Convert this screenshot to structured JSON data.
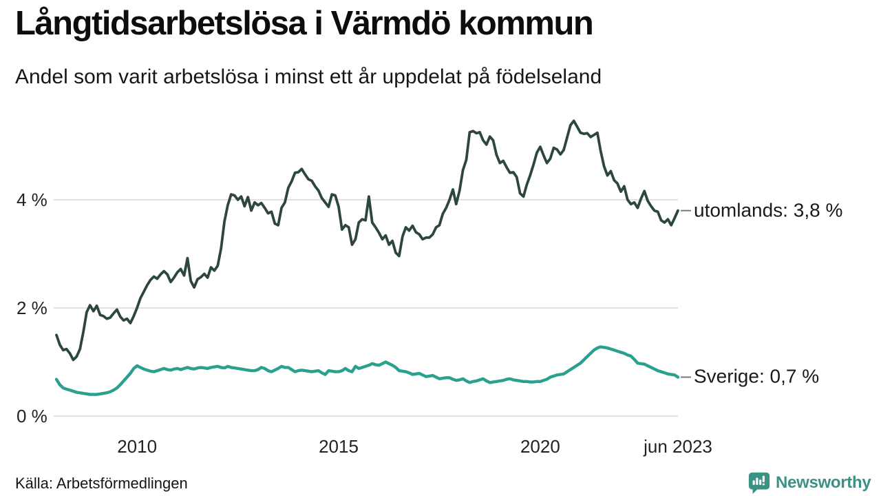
{
  "header": {
    "title": "Långtidsarbetslösa i Värmdö kommun",
    "subtitle": "Andel som varit arbetslösa i minst ett år uppdelat på födelseland"
  },
  "footer": {
    "source": "Källa: Arbetsförmedlingen",
    "brand": "Newsworthy",
    "brand_icon": "bar-chart-speech-bubble-icon"
  },
  "colors": {
    "utomlands_line": "#2d463e",
    "sverige_line": "#2aa08f",
    "grid": "#e2e2e2",
    "connector_dash": "#7a7a7a",
    "brand_teal": "#3a9184",
    "text": "#111111"
  },
  "chart_data": {
    "type": "line",
    "title": "Långtidsarbetslösa i Värmdö kommun",
    "subtitle": "Andel som varit arbetslösa i minst ett år uppdelat på födelseland",
    "unit": "percent",
    "frequency": "monthly",
    "x_start": "2008-01",
    "x_end": "2023-06",
    "x_tick_labels": [
      "2010",
      "2015",
      "2020",
      "jun 2023"
    ],
    "x_tick_positions_months": [
      24,
      84,
      144,
      185
    ],
    "y_ticks": [
      "4 %",
      "2 %",
      "0 %"
    ],
    "y_tick_values": [
      4,
      2,
      0
    ],
    "ylim": [
      0,
      5.8
    ],
    "grid": "horizontal",
    "legend_position": "right-end-labels",
    "series": [
      {
        "name": "utomlands",
        "label": "utomlands: 3,8 %",
        "last_value_label": "3,8 %",
        "color": "#2d463e",
        "values": [
          1.5,
          1.32,
          1.22,
          1.24,
          1.16,
          1.04,
          1.1,
          1.24,
          1.55,
          1.92,
          2.05,
          1.94,
          2.04,
          1.87,
          1.85,
          1.8,
          1.82,
          1.9,
          1.97,
          1.84,
          1.77,
          1.8,
          1.72,
          1.85,
          2.0,
          2.18,
          2.3,
          2.42,
          2.52,
          2.58,
          2.54,
          2.62,
          2.68,
          2.62,
          2.48,
          2.56,
          2.66,
          2.72,
          2.6,
          2.92,
          2.5,
          2.38,
          2.53,
          2.57,
          2.63,
          2.56,
          2.75,
          2.69,
          2.78,
          3.1,
          3.6,
          3.9,
          4.1,
          4.08,
          4.0,
          4.06,
          3.88,
          4.05,
          3.8,
          3.95,
          3.9,
          3.94,
          3.85,
          3.75,
          3.78,
          3.56,
          3.53,
          3.85,
          3.95,
          4.22,
          4.34,
          4.5,
          4.51,
          4.57,
          4.47,
          4.38,
          4.35,
          4.25,
          4.17,
          4.03,
          3.95,
          3.87,
          4.1,
          4.08,
          3.87,
          3.45,
          3.53,
          3.49,
          3.17,
          3.27,
          3.58,
          3.64,
          3.62,
          4.06,
          3.58,
          3.49,
          3.39,
          3.27,
          3.34,
          3.17,
          3.24,
          3.02,
          2.96,
          3.32,
          3.49,
          3.43,
          3.52,
          3.4,
          3.36,
          3.27,
          3.3,
          3.3,
          3.36,
          3.49,
          3.53,
          3.74,
          3.85,
          4.0,
          4.19,
          3.92,
          4.17,
          4.55,
          4.74,
          5.25,
          5.27,
          5.23,
          5.25,
          5.1,
          5.02,
          5.17,
          5.1,
          4.83,
          4.68,
          4.72,
          4.6,
          4.5,
          4.51,
          4.42,
          4.12,
          4.06,
          4.28,
          4.45,
          4.65,
          4.87,
          4.98,
          4.82,
          4.68,
          4.76,
          4.96,
          4.93,
          4.84,
          4.92,
          5.15,
          5.38,
          5.46,
          5.35,
          5.24,
          5.22,
          5.23,
          5.16,
          5.2,
          5.24,
          4.9,
          4.62,
          4.45,
          4.53,
          4.36,
          4.3,
          4.15,
          4.25,
          4.0,
          3.92,
          3.95,
          3.85,
          4.02,
          4.16,
          3.98,
          3.88,
          3.8,
          3.78,
          3.62,
          3.58,
          3.64,
          3.53,
          3.66,
          3.8
        ]
      },
      {
        "name": "Sverige",
        "label": "Sverige: 0,7 %",
        "last_value_label": "0,7 %",
        "color": "#2aa08f",
        "values": [
          0.68,
          0.58,
          0.52,
          0.5,
          0.48,
          0.46,
          0.44,
          0.43,
          0.42,
          0.41,
          0.4,
          0.4,
          0.4,
          0.41,
          0.42,
          0.43,
          0.45,
          0.48,
          0.52,
          0.58,
          0.65,
          0.72,
          0.79,
          0.88,
          0.93,
          0.9,
          0.87,
          0.85,
          0.83,
          0.82,
          0.84,
          0.86,
          0.88,
          0.86,
          0.85,
          0.87,
          0.88,
          0.86,
          0.88,
          0.9,
          0.88,
          0.87,
          0.89,
          0.9,
          0.89,
          0.88,
          0.9,
          0.91,
          0.92,
          0.9,
          0.89,
          0.92,
          0.9,
          0.89,
          0.88,
          0.87,
          0.86,
          0.85,
          0.84,
          0.84,
          0.86,
          0.9,
          0.88,
          0.84,
          0.82,
          0.85,
          0.88,
          0.92,
          0.9,
          0.9,
          0.86,
          0.82,
          0.84,
          0.85,
          0.84,
          0.83,
          0.82,
          0.83,
          0.84,
          0.8,
          0.77,
          0.84,
          0.83,
          0.82,
          0.82,
          0.84,
          0.88,
          0.84,
          0.82,
          0.92,
          0.88,
          0.9,
          0.92,
          0.94,
          0.97,
          0.95,
          0.94,
          0.97,
          1.0,
          0.97,
          0.94,
          0.9,
          0.84,
          0.83,
          0.82,
          0.8,
          0.77,
          0.78,
          0.79,
          0.76,
          0.73,
          0.74,
          0.75,
          0.72,
          0.69,
          0.7,
          0.71,
          0.71,
          0.68,
          0.66,
          0.67,
          0.69,
          0.65,
          0.62,
          0.64,
          0.65,
          0.67,
          0.69,
          0.65,
          0.62,
          0.63,
          0.64,
          0.65,
          0.66,
          0.68,
          0.69,
          0.67,
          0.66,
          0.65,
          0.64,
          0.64,
          0.63,
          0.63,
          0.64,
          0.64,
          0.66,
          0.68,
          0.72,
          0.74,
          0.76,
          0.77,
          0.78,
          0.82,
          0.86,
          0.9,
          0.94,
          0.98,
          1.04,
          1.1,
          1.16,
          1.22,
          1.26,
          1.28,
          1.27,
          1.26,
          1.24,
          1.22,
          1.2,
          1.18,
          1.16,
          1.13,
          1.11,
          1.05,
          0.98,
          0.97,
          0.96,
          0.93,
          0.9,
          0.87,
          0.84,
          0.82,
          0.8,
          0.78,
          0.77,
          0.76,
          0.72
        ]
      }
    ]
  }
}
